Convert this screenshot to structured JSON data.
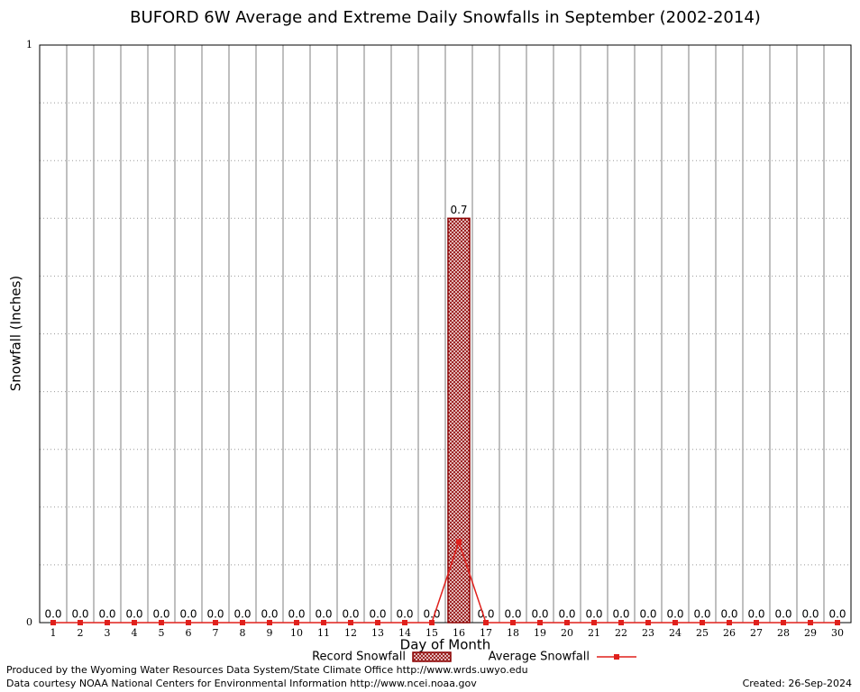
{
  "chart_data": {
    "type": "bar",
    "title": "BUFORD 6W Average and Extreme Daily Snowfalls in September (2002-2014)",
    "x_label": "Day of Month",
    "y_label": "Snowfall (Inches)",
    "categories": [
      "1",
      "2",
      "3",
      "4",
      "5",
      "6",
      "7",
      "8",
      "9",
      "10",
      "11",
      "12",
      "13",
      "14",
      "15",
      "16",
      "17",
      "18",
      "19",
      "20",
      "21",
      "22",
      "23",
      "24",
      "25",
      "26",
      "27",
      "28",
      "29",
      "30"
    ],
    "series": [
      {
        "name": "Record Snowfall",
        "type": "bar",
        "color": "#8b0000",
        "values": [
          0,
          0,
          0,
          0,
          0,
          0,
          0,
          0,
          0,
          0,
          0,
          0,
          0,
          0,
          0,
          0.7,
          0,
          0,
          0,
          0,
          0,
          0,
          0,
          0,
          0,
          0,
          0,
          0,
          0,
          0
        ],
        "value_labels": [
          "0.0",
          "0.0",
          "0.0",
          "0.0",
          "0.0",
          "0.0",
          "0.0",
          "0.0",
          "0.0",
          "0.0",
          "0.0",
          "0.0",
          "0.0",
          "0.0",
          "0.0",
          "0.7",
          "0.0",
          "0.0",
          "0.0",
          "0.0",
          "0.0",
          "0.0",
          "0.0",
          "0.0",
          "0.0",
          "0.0",
          "0.0",
          "0.0",
          "0.0",
          "0.0"
        ]
      },
      {
        "name": "Average Snowfall",
        "type": "line",
        "color": "#e0201c",
        "values": [
          0,
          0,
          0,
          0,
          0,
          0,
          0,
          0,
          0,
          0,
          0,
          0,
          0,
          0,
          0,
          0.14,
          0,
          0,
          0,
          0,
          0,
          0,
          0,
          0,
          0,
          0,
          0,
          0,
          0,
          0
        ]
      }
    ],
    "ylim": [
      0,
      1
    ],
    "yticks": [
      0,
      1
    ],
    "y_minor_grid": [
      0.1,
      0.2,
      0.3,
      0.4,
      0.5,
      0.6,
      0.7,
      0.8,
      0.9
    ],
    "grid": true,
    "footer": {
      "produced_by": "Produced by the Wyoming Water Resources Data System/State Climate Office http://www.wrds.uwyo.edu",
      "data_courtesy": "Data courtesy NOAA National Centers for Environmental Information http://www.ncei.noaa.gov",
      "created": "Created:  26-Sep-2024"
    }
  }
}
